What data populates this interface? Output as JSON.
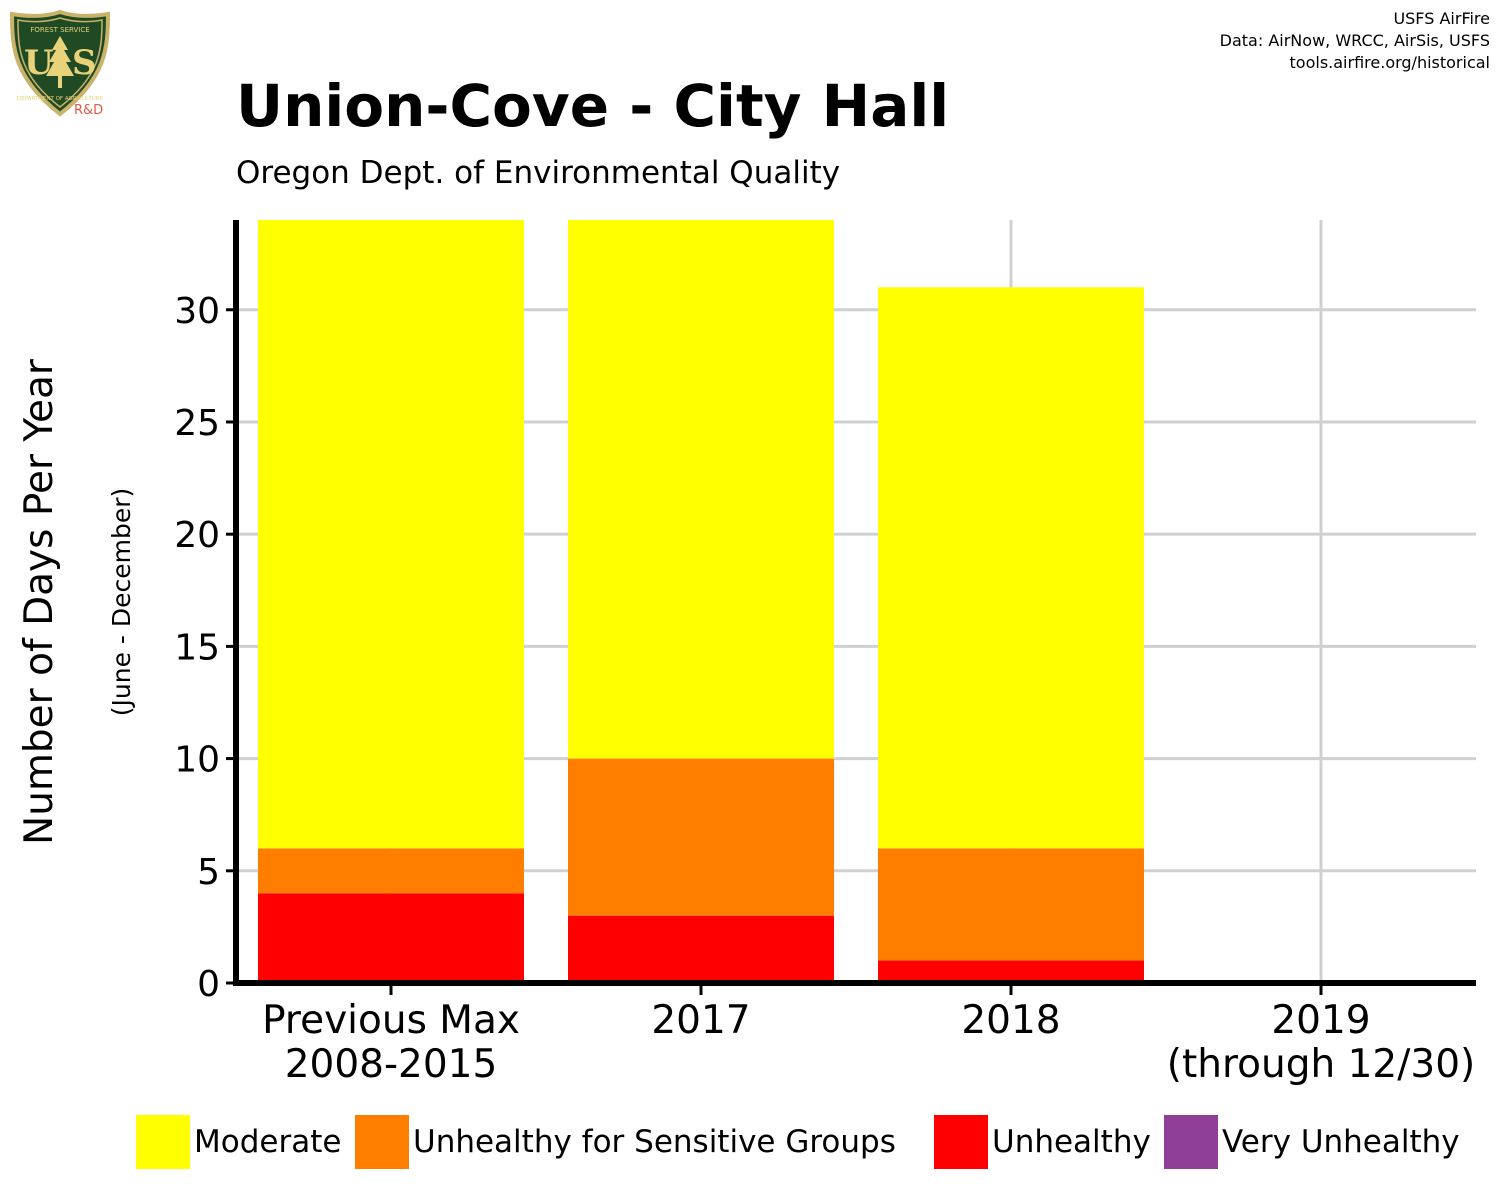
{
  "header": {
    "title": "Union-Cove - City Hall",
    "subtitle": "Oregon Dept. of Environmental Quality",
    "credits": [
      "USFS AirFire",
      "Data: AirNow, WRCC, AirSis, USFS",
      "tools.airfire.org/historical"
    ]
  },
  "logo": {
    "top_text": "FOREST SERVICE",
    "bottom_text": "DEPARTMENT OF AGRICULTURE",
    "letters": "US",
    "rd": "R&D",
    "colors": {
      "shield": "#1f4a23",
      "border": "#c9b26a",
      "text": "#e8d27a",
      "rd": "#e05a4a"
    }
  },
  "chart_data": {
    "type": "bar",
    "stacked": true,
    "categories": [
      "Previous Max\n2008-2015",
      "2017",
      "2018",
      "2019\n(through 12/30)"
    ],
    "series": [
      {
        "name": "Unhealthy",
        "color": "#ff0000",
        "values": [
          4,
          3,
          1,
          0
        ]
      },
      {
        "name": "Unhealthy for Sensitive Groups",
        "color": "#ff7e00",
        "values": [
          2,
          7,
          5,
          0
        ]
      },
      {
        "name": "Moderate",
        "color": "#ffff00",
        "values": [
          28,
          24,
          25,
          0
        ]
      }
    ],
    "ylabel": "Number of Days Per Year",
    "ylabel2": "(June - December)",
    "xlabel": "",
    "ylim": [
      0,
      34
    ],
    "yticks": [
      0,
      5,
      10,
      15,
      20,
      25,
      30
    ],
    "grid": true,
    "legend_position": "bottom"
  },
  "legend": [
    {
      "name": "Moderate",
      "color": "#ffff00"
    },
    {
      "name": "Unhealthy for Sensitive Groups",
      "color": "#ff7e00"
    },
    {
      "name": "Unhealthy",
      "color": "#ff0000"
    },
    {
      "name": "Very Unhealthy",
      "color": "#8f3f97"
    }
  ]
}
